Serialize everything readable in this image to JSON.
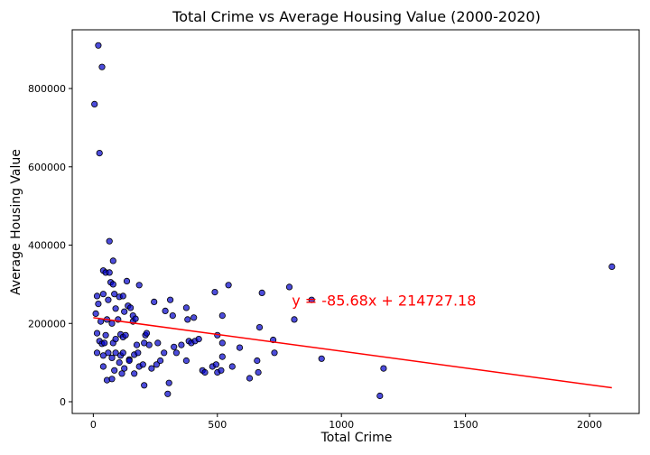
{
  "chart_data": {
    "type": "scatter",
    "title": "Total Crime vs Average Housing Value (2000-2020)",
    "xlabel": "Total Crime",
    "ylabel": "Average Housing Value",
    "xlim": [
      -85,
      2200
    ],
    "ylim": [
      -30000,
      950000
    ],
    "xticks": [
      0,
      500,
      1000,
      1500,
      2000
    ],
    "yticks": [
      0,
      200000,
      400000,
      600000,
      800000
    ],
    "grid": false,
    "point_color": "#0000cc",
    "line_color": "#ff0000",
    "regression": {
      "slope": -85.68,
      "intercept": 214727.18,
      "x_range": [
        0,
        2090
      ]
    },
    "annotation": {
      "text": "y = -85.68x + 214727.18",
      "x": 800,
      "y": 245000,
      "color": "#ff0000"
    },
    "points": [
      [
        5,
        760000
      ],
      [
        20,
        910000
      ],
      [
        35,
        855000
      ],
      [
        25,
        635000
      ],
      [
        65,
        410000
      ],
      [
        80,
        360000
      ],
      [
        40,
        335000
      ],
      [
        50,
        330000
      ],
      [
        65,
        330000
      ],
      [
        70,
        305000
      ],
      [
        80,
        300000
      ],
      [
        135,
        308000
      ],
      [
        185,
        298000
      ],
      [
        15,
        270000
      ],
      [
        40,
        275000
      ],
      [
        85,
        275000
      ],
      [
        105,
        268000
      ],
      [
        120,
        270000
      ],
      [
        20,
        250000
      ],
      [
        60,
        260000
      ],
      [
        140,
        245000
      ],
      [
        90,
        238000
      ],
      [
        125,
        230000
      ],
      [
        150,
        240000
      ],
      [
        10,
        225000
      ],
      [
        30,
        205000
      ],
      [
        55,
        210000
      ],
      [
        75,
        200000
      ],
      [
        100,
        210000
      ],
      [
        160,
        220000
      ],
      [
        160,
        205000
      ],
      [
        170,
        212000
      ],
      [
        15,
        175000
      ],
      [
        25,
        155000
      ],
      [
        35,
        148000
      ],
      [
        45,
        150000
      ],
      [
        50,
        170000
      ],
      [
        80,
        150000
      ],
      [
        90,
        160000
      ],
      [
        110,
        172000
      ],
      [
        120,
        165000
      ],
      [
        130,
        170000
      ],
      [
        175,
        145000
      ],
      [
        205,
        150000
      ],
      [
        210,
        170000
      ],
      [
        215,
        175000
      ],
      [
        225,
        145000
      ],
      [
        15,
        125000
      ],
      [
        40,
        118000
      ],
      [
        60,
        125000
      ],
      [
        75,
        112000
      ],
      [
        90,
        125000
      ],
      [
        110,
        118000
      ],
      [
        120,
        125000
      ],
      [
        145,
        108000
      ],
      [
        165,
        120000
      ],
      [
        180,
        125000
      ],
      [
        40,
        90000
      ],
      [
        85,
        80000
      ],
      [
        105,
        100000
      ],
      [
        125,
        85000
      ],
      [
        145,
        105000
      ],
      [
        165,
        72000
      ],
      [
        185,
        90000
      ],
      [
        200,
        95000
      ],
      [
        235,
        85000
      ],
      [
        255,
        95000
      ],
      [
        55,
        55000
      ],
      [
        75,
        58000
      ],
      [
        115,
        72000
      ],
      [
        205,
        42000
      ],
      [
        245,
        255000
      ],
      [
        290,
        232000
      ],
      [
        310,
        260000
      ],
      [
        320,
        220000
      ],
      [
        325,
        140000
      ],
      [
        335,
        125000
      ],
      [
        355,
        145000
      ],
      [
        375,
        240000
      ],
      [
        380,
        210000
      ],
      [
        385,
        155000
      ],
      [
        395,
        150000
      ],
      [
        405,
        215000
      ],
      [
        410,
        155000
      ],
      [
        425,
        160000
      ],
      [
        375,
        105000
      ],
      [
        440,
        80000
      ],
      [
        450,
        75000
      ],
      [
        480,
        90000
      ],
      [
        490,
        280000
      ],
      [
        495,
        95000
      ],
      [
        500,
        75000
      ],
      [
        500,
        170000
      ],
      [
        515,
        80000
      ],
      [
        520,
        150000
      ],
      [
        520,
        115000
      ],
      [
        520,
        220000
      ],
      [
        545,
        298000
      ],
      [
        560,
        90000
      ],
      [
        590,
        138000
      ],
      [
        630,
        60000
      ],
      [
        660,
        105000
      ],
      [
        665,
        75000
      ],
      [
        670,
        190000
      ],
      [
        680,
        278000
      ],
      [
        725,
        158000
      ],
      [
        730,
        125000
      ],
      [
        790,
        293000
      ],
      [
        810,
        210000
      ],
      [
        880,
        260000
      ],
      [
        920,
        110000
      ],
      [
        1155,
        15000
      ],
      [
        1170,
        85000
      ],
      [
        2090,
        345000
      ],
      [
        300,
        20000
      ],
      [
        305,
        48000
      ],
      [
        270,
        105000
      ],
      [
        285,
        125000
      ],
      [
        260,
        150000
      ]
    ]
  }
}
